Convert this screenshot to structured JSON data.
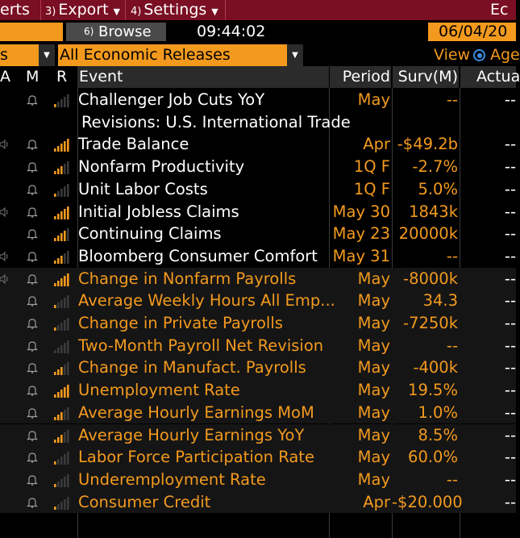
{
  "menu": {
    "alerts_label": "erts",
    "export_num": "3)",
    "export_label": "Export",
    "settings_num": "4)",
    "settings_label": "Settings",
    "right_label": "Ec"
  },
  "bar2": {
    "browse_num": "6)",
    "browse_label": "Browse",
    "time": "09:44:02",
    "date": "06/04/20"
  },
  "bar3": {
    "left_dropdown": "s",
    "filter_value": "All Economic Releases",
    "view_label": "View",
    "view_option": "Age"
  },
  "columns": {
    "a": "A",
    "m": "M",
    "r": "R",
    "event": "Event",
    "period": "Period",
    "surv": "Surv(M)",
    "actual": "Actua"
  },
  "colors": {
    "menu_bg": "#7a0e22",
    "accent_orange": "#f39a1e",
    "white_text": "#ffffff"
  },
  "rows": [
    {
      "event": "Challenger Job Cuts YoY",
      "period": "May",
      "surv": "--",
      "actual": "--",
      "event_color": "white",
      "speaker": false,
      "relevance": 1
    },
    {
      "event": "Revisions: U.S. International Trade",
      "period": "",
      "surv": "",
      "actual": "",
      "event_color": "white",
      "speaker": false,
      "relevance": 0,
      "no_bell": true
    },
    {
      "event": "Trade Balance",
      "period": "Apr",
      "surv": "-$49.2b",
      "actual": "--",
      "event_color": "white",
      "speaker": true,
      "relevance": 5
    },
    {
      "event": "Nonfarm Productivity",
      "period": "1Q F",
      "surv": "-2.7%",
      "actual": "--",
      "event_color": "white",
      "speaker": false,
      "relevance": 3
    },
    {
      "event": "Unit Labor Costs",
      "period": "1Q F",
      "surv": "5.0%",
      "actual": "--",
      "event_color": "white",
      "speaker": false,
      "relevance": 1
    },
    {
      "event": "Initial Jobless Claims",
      "period": "May 30",
      "surv": "1843k",
      "actual": "--",
      "event_color": "white",
      "speaker": true,
      "relevance": 5
    },
    {
      "event": "Continuing Claims",
      "period": "May 23",
      "surv": "20000k",
      "actual": "--",
      "event_color": "white",
      "speaker": false,
      "relevance": 4
    },
    {
      "event": "Bloomberg Consumer Comfort",
      "period": "May 31",
      "surv": "--",
      "actual": "--",
      "event_color": "white",
      "speaker": true,
      "relevance": 3
    },
    {
      "event": "Change in Nonfarm Payrolls",
      "period": "May",
      "surv": "-8000k",
      "actual": "--",
      "event_color": "orange",
      "speaker": true,
      "relevance": 5
    },
    {
      "event": "Average Weekly Hours All Emp...",
      "period": "May",
      "surv": "34.3",
      "actual": "--",
      "event_color": "orange",
      "speaker": false,
      "relevance": 1
    },
    {
      "event": "Change in Private Payrolls",
      "period": "May",
      "surv": "-7250k",
      "actual": "--",
      "event_color": "orange",
      "speaker": false,
      "relevance": 1
    },
    {
      "event": "Two-Month Payroll Net Revision",
      "period": "May",
      "surv": "--",
      "actual": "--",
      "event_color": "orange",
      "speaker": false,
      "relevance": 0
    },
    {
      "event": "Change in Manufact. Payrolls",
      "period": "May",
      "surv": "-400k",
      "actual": "--",
      "event_color": "orange",
      "speaker": false,
      "relevance": 3
    },
    {
      "event": "Unemployment Rate",
      "period": "May",
      "surv": "19.5%",
      "actual": "--",
      "event_color": "orange",
      "speaker": false,
      "relevance": 5
    },
    {
      "event": "Average Hourly Earnings MoM",
      "period": "May",
      "surv": "1.0%",
      "actual": "--",
      "event_color": "orange",
      "speaker": false,
      "relevance": 3
    },
    {
      "event": "Average Hourly Earnings YoY",
      "period": "May",
      "surv": "8.5%",
      "actual": "--",
      "event_color": "orange",
      "speaker": false,
      "relevance": 3
    },
    {
      "event": "Labor Force Participation Rate",
      "period": "May",
      "surv": "60.0%",
      "actual": "--",
      "event_color": "orange",
      "speaker": false,
      "relevance": 1
    },
    {
      "event": "Underemployment Rate",
      "period": "May",
      "surv": "--",
      "actual": "--",
      "event_color": "orange",
      "speaker": false,
      "relevance": 1
    },
    {
      "event": "Consumer Credit",
      "period": "Apr",
      "surv": "-$20.000",
      "actual": "--",
      "event_color": "orange",
      "speaker": false,
      "relevance": 1
    }
  ]
}
